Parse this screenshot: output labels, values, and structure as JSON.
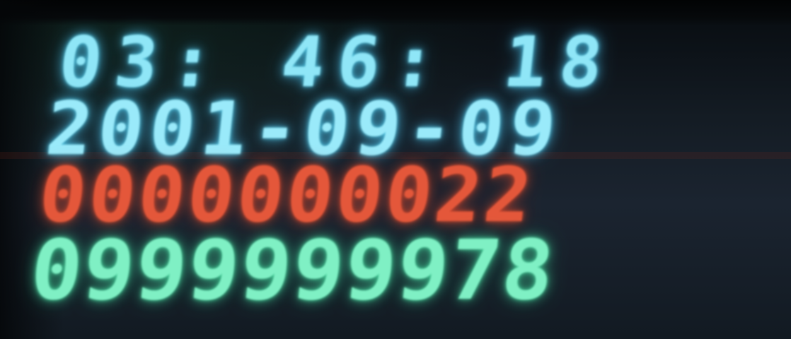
{
  "display": {
    "time": "03: 46: 18",
    "date": "2001-09-09",
    "counter_red": "0000000022",
    "counter_green": "0999999978"
  },
  "colors": {
    "time_date": "#8fe6f7",
    "counter_red": "#e4573a",
    "counter_green": "#7ff0c4",
    "background": "#141c24"
  }
}
